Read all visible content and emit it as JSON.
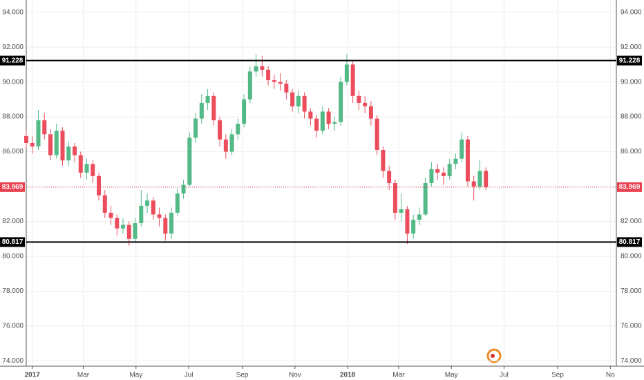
{
  "chart_data": {
    "type": "candlestick",
    "x": [
      -7,
      0,
      7,
      14,
      21,
      28,
      35,
      42,
      49,
      56,
      63,
      70,
      77,
      84,
      91,
      98,
      105,
      112,
      119,
      126,
      133,
      140,
      147,
      154,
      161,
      168,
      175,
      182,
      189,
      196,
      203,
      210,
      217,
      224,
      231,
      238,
      245,
      252,
      259,
      266,
      273,
      280,
      287,
      294,
      301,
      308,
      315,
      322,
      329,
      336,
      343,
      350,
      357,
      364,
      371,
      378,
      385,
      392,
      399,
      406,
      413,
      420,
      427,
      434,
      441,
      448,
      455,
      462,
      469,
      476,
      483,
      490,
      497,
      504,
      511,
      518,
      525
    ],
    "open": [
      86.9,
      86.5,
      86.3,
      87.8,
      87.0,
      85.8,
      87.2,
      85.5,
      86.3,
      85.8,
      84.8,
      85.3,
      84.6,
      83.5,
      82.5,
      82.2,
      81.6,
      81.8,
      81.0,
      81.9,
      82.9,
      83.2,
      82.4,
      82.2,
      81.3,
      82.5,
      83.6,
      84.1,
      86.8,
      87.9,
      88.8,
      89.2,
      87.8,
      86.7,
      86.0,
      87.0,
      87.6,
      89.0,
      90.6,
      90.9,
      90.7,
      90.1,
      90.0,
      89.9,
      89.4,
      88.6,
      89.2,
      88.3,
      87.9,
      87.2,
      88.3,
      87.6,
      87.7,
      90.0,
      91.0,
      89.2,
      88.8,
      88.6,
      87.9,
      86.1,
      84.9,
      84.2,
      82.5,
      82.7,
      81.3,
      82.1,
      82.4,
      84.2,
      85.0,
      84.8,
      84.6,
      85.3,
      85.6,
      86.7,
      84.3,
      84.0,
      84.9
    ],
    "high": [
      87.2,
      86.9,
      88.4,
      88.2,
      87.3,
      87.6,
      87.4,
      86.6,
      86.5,
      86.0,
      85.6,
      85.5,
      84.8,
      83.8,
      82.9,
      82.4,
      82.2,
      82.0,
      82.2,
      83.8,
      83.6,
      83.4,
      82.8,
      82.4,
      82.8,
      83.9,
      84.4,
      87.1,
      88.2,
      89.3,
      89.6,
      89.4,
      88.0,
      87.0,
      87.3,
      87.9,
      89.3,
      90.9,
      91.6,
      91.5,
      90.9,
      90.4,
      90.5,
      90.1,
      89.6,
      89.5,
      89.4,
      88.5,
      88.1,
      88.6,
      88.5,
      88.0,
      90.3,
      91.6,
      91.2,
      89.5,
      89.2,
      88.9,
      88.1,
      86.3,
      85.2,
      84.4,
      83.6,
      82.9,
      82.4,
      82.8,
      84.5,
      85.4,
      85.3,
      85.1,
      85.6,
      85.9,
      87.1,
      86.9,
      84.6,
      85.5,
      85.1
    ],
    "low": [
      86.2,
      85.9,
      86.1,
      86.7,
      85.5,
      85.6,
      85.2,
      85.2,
      85.4,
      84.5,
      84.4,
      84.2,
      83.2,
      82.2,
      81.8,
      81.2,
      81.3,
      80.6,
      80.8,
      81.7,
      82.5,
      82.1,
      81.7,
      80.9,
      81.0,
      82.3,
      83.3,
      84.0,
      86.5,
      87.6,
      88.4,
      87.5,
      86.3,
      85.6,
      85.8,
      86.7,
      87.4,
      88.8,
      90.3,
      90.3,
      89.8,
      89.6,
      89.5,
      89.0,
      88.3,
      88.2,
      87.9,
      87.5,
      86.8,
      87.0,
      87.3,
      87.2,
      87.5,
      89.8,
      88.8,
      88.4,
      88.2,
      87.5,
      85.8,
      84.5,
      83.8,
      82.1,
      82.0,
      80.7,
      81.0,
      81.8,
      82.3,
      84.0,
      84.4,
      84.1,
      84.4,
      85.0,
      85.4,
      84.0,
      83.2,
      83.8,
      83.8
    ],
    "close": [
      86.5,
      86.3,
      87.8,
      87.0,
      85.8,
      87.2,
      85.5,
      86.3,
      85.8,
      84.8,
      85.3,
      84.6,
      83.5,
      82.5,
      82.2,
      81.6,
      81.8,
      81.0,
      81.9,
      82.9,
      83.2,
      82.4,
      82.2,
      81.3,
      82.5,
      83.6,
      84.1,
      86.8,
      87.9,
      88.8,
      89.2,
      87.8,
      86.7,
      86.0,
      87.0,
      87.6,
      89.0,
      90.6,
      90.9,
      90.7,
      90.1,
      90.0,
      89.9,
      89.4,
      88.6,
      89.2,
      88.3,
      87.9,
      87.2,
      88.3,
      87.6,
      87.7,
      90.0,
      91.0,
      89.2,
      88.8,
      88.6,
      87.9,
      86.1,
      84.9,
      84.2,
      82.5,
      82.7,
      81.3,
      82.1,
      82.4,
      84.2,
      85.0,
      84.8,
      84.6,
      85.3,
      85.6,
      86.7,
      84.3,
      84.0,
      84.9,
      83.969
    ],
    "up_color": "#53b987",
    "down_color": "#eb4d5c",
    "xlim": [
      -7,
      676
    ],
    "xticks": [
      {
        "value": 0,
        "label": "2017"
      },
      {
        "value": 59,
        "label": "Mar"
      },
      {
        "value": 120,
        "label": "May"
      },
      {
        "value": 181,
        "label": "Jul"
      },
      {
        "value": 243,
        "label": "Sep"
      },
      {
        "value": 304,
        "label": "Nov"
      },
      {
        "value": 365,
        "label": "2018"
      },
      {
        "value": 424,
        "label": "Mar"
      },
      {
        "value": 485,
        "label": "May"
      },
      {
        "value": 546,
        "label": "Jul"
      },
      {
        "value": 608,
        "label": "Sep"
      },
      {
        "value": 669,
        "label": "No"
      }
    ],
    "ylim": [
      73.7,
      94.7
    ],
    "yticks": [
      {
        "value": 74,
        "label": "74.000"
      },
      {
        "value": 76,
        "label": "76.000"
      },
      {
        "value": 78,
        "label": "78.000"
      },
      {
        "value": 80,
        "label": "80.000"
      },
      {
        "value": 82,
        "label": "82.000"
      },
      {
        "value": 84,
        "label": "84.000"
      },
      {
        "value": 86,
        "label": "86.000"
      },
      {
        "value": 88,
        "label": "88.000"
      },
      {
        "value": 90,
        "label": "90.000"
      },
      {
        "value": 92,
        "label": "92.000"
      },
      {
        "value": 94,
        "label": "94.000"
      }
    ],
    "grid": true,
    "levels": [
      91.228,
      80.817
    ],
    "level_color": "#000000",
    "last_price": 83.969,
    "last_price_color": "#e8404f"
  }
}
